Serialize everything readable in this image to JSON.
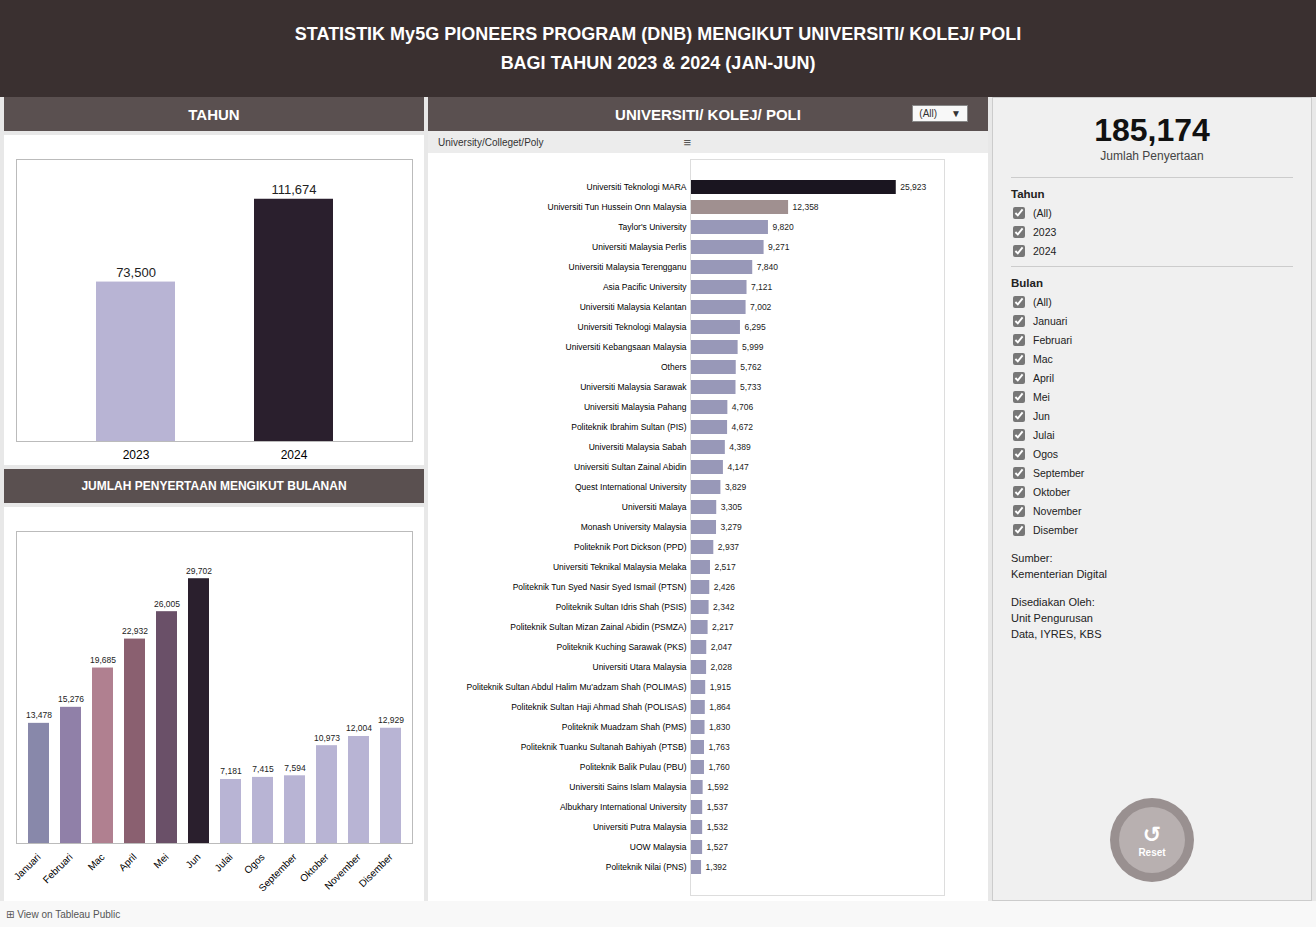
{
  "title": "STATISTIK My5G PIONEERS PROGRAM (DNB) MENGIKUT UNIVERSITI/ KOLEJ/ POLI",
  "subtitle": "BAGI TAHUN 2023 & 2024 (JAN-JUN)",
  "annotations": [
    [
      "185,174",
      "Jumlah Penyertaan"
    ],
    [
      "Tahun",
      "(All)",
      "2023",
      "2024"
    ],
    [
      "Bulan",
      "(All)",
      "Januari",
      "Februari",
      "Mac",
      "April",
      "Mei",
      "Jun",
      "Julai",
      "Ogos",
      "September",
      "Oktober",
      "November",
      "Disember"
    ],
    [
      "Sumber:",
      "Kementerian Digital"
    ],
    [
      "Disediakan Oleh:",
      "Unit Pengurusan",
      "Data, IYRES, KBS"
    ],
    [
      "↺",
      "Reset"
    ],
    [
      "⊞ View on Tableau Public"
    ]
  ],
  "chart_data": [
    {
      "type": "bar",
      "title": "TAHUN",
      "categories": [
        "2023",
        "2024"
      ],
      "values": [
        73500,
        111674
      ],
      "value_labels": [
        "73,500",
        "111,674"
      ],
      "colors": [
        "#b8b4d4",
        "#2a1f2d"
      ],
      "ylim": [
        0,
        130000
      ],
      "data_labels": true,
      "tick_labels": "x"
    },
    {
      "type": "bar",
      "title": "JUMLAH PENYERTAAN MENGIKUT BULANAN",
      "categories": [
        "Januari",
        "Februari",
        "Mac",
        "April",
        "Mei",
        "Jun",
        "Julai",
        "Ogos",
        "September",
        "Oktober",
        "November",
        "Disember"
      ],
      "values": [
        13478,
        15276,
        19685,
        22932,
        26005,
        29702,
        7181,
        7415,
        7594,
        10973,
        12004,
        12929
      ],
      "value_labels": [
        "13,478",
        "15,276",
        "19,685",
        "22,932",
        "26,005",
        "29,702",
        "7,181",
        "7,415",
        "7,594",
        "10,973",
        "12,004",
        "12,929"
      ],
      "colors": [
        "#8888aa",
        "#9080a8",
        "#b08090",
        "#8a6070",
        "#6a5068",
        "#2a1f2d",
        "#b8b4d4",
        "#b8b4d4",
        "#b8b4d4",
        "#b8b4d4",
        "#b8b4d4",
        "#b8b4d4"
      ],
      "ylim": [
        0,
        35000
      ],
      "data_labels": true,
      "tick_labels": "x"
    },
    {
      "type": "bar",
      "orientation": "horizontal",
      "title": "UNIVERSITI/ KOLEJ/ POLI",
      "subtitle": "University/Colleget/Poly",
      "annotations": [
        "(All)",
        "▼",
        "≡"
      ],
      "categories": [
        "Universiti Teknologi MARA",
        "Universiti Tun Hussein Onn Malaysia",
        "Taylor's University",
        "Universiti Malaysia Perlis",
        "Universiti Malaysia Terengganu",
        "Asia Pacific University",
        "Universiti Malaysia Kelantan",
        "Universiti Teknologi Malaysia",
        "Universiti Kebangsaan Malaysia",
        "Others",
        "Universiti Malaysia Sarawak",
        "Universiti Malaysia Pahang",
        "Politeknik Ibrahim Sultan (PIS)",
        "Universiti Malaysia Sabah",
        "Universiti Sultan Zainal Abidin",
        "Quest International University",
        "Universiti Malaya",
        "Monash University Malaysia",
        "Politeknik Port Dickson (PPD)",
        "Universiti Teknikal Malaysia Melaka",
        "Politeknik Tun Syed Nasir Syed Ismail (PTSN)",
        "Politeknik Sultan Idris Shah (PSIS)",
        "Politeknik Sultan Mizan Zainal Abidin (PSMZA)",
        "Politeknik Kuching Sarawak (PKS)",
        "Universiti Utara Malaysia",
        "Politeknik Sultan Abdul Halim Mu'adzam Shah (POLIMAS)",
        "Politeknik Sultan Haji Ahmad Shah (POLISAS)",
        "Politeknik Muadzam Shah (PMS)",
        "Politeknik Tuanku Sultanah Bahiyah (PTSB)",
        "Politeknik Balik Pulau (PBU)",
        "Universiti Sains Islam Malaysia",
        "Albukhary International University",
        "Universiti Putra Malaysia",
        "UOW Malaysia",
        "Politeknik Nilai (PNS)"
      ],
      "values": [
        25923,
        12358,
        9820,
        9271,
        7840,
        7121,
        7002,
        6295,
        5999,
        5762,
        5733,
        4706,
        4672,
        4389,
        4147,
        3829,
        3305,
        3279,
        2937,
        2517,
        2426,
        2342,
        2217,
        2047,
        2028,
        1915,
        1864,
        1830,
        1763,
        1760,
        1592,
        1537,
        1532,
        1527,
        1392
      ],
      "value_labels": [
        "25,923",
        "12,358",
        "9,820",
        "9,271",
        "7,840",
        "7,121",
        "7,002",
        "6,295",
        "5,999",
        "5,762",
        "5,733",
        "4,706",
        "4,672",
        "4,389",
        "4,147",
        "3,829",
        "3,305",
        "3,279",
        "2,937",
        "2,517",
        "2,426",
        "2,342",
        "2,217",
        "2,047",
        "2,028",
        "1,915",
        "1,864",
        "1,830",
        "1,763",
        "1,760",
        "1,592",
        "1,537",
        "1,532",
        "1,527",
        "1,392"
      ],
      "colors": [
        "#1a1520",
        "#a09090",
        "#9898b8",
        "#9898b8",
        "#9898b8",
        "#9898b8",
        "#9898b8",
        "#9898b8",
        "#9898b8",
        "#9898b8",
        "#9898b8",
        "#9898b8",
        "#9898b8",
        "#9898b8",
        "#9898b8",
        "#9898b8",
        "#9898b8",
        "#9898b8",
        "#9898b8",
        "#9898b8",
        "#9898b8",
        "#9898b8",
        "#9898b8",
        "#9898b8",
        "#9898b8",
        "#9898b8",
        "#9898b8",
        "#9898b8",
        "#9898b8",
        "#9898b8",
        "#9898b8",
        "#9898b8",
        "#9898b8",
        "#9898b8",
        "#9898b8"
      ],
      "xlim": [
        0,
        32000
      ],
      "data_labels": true,
      "tick_labels": "y"
    }
  ]
}
